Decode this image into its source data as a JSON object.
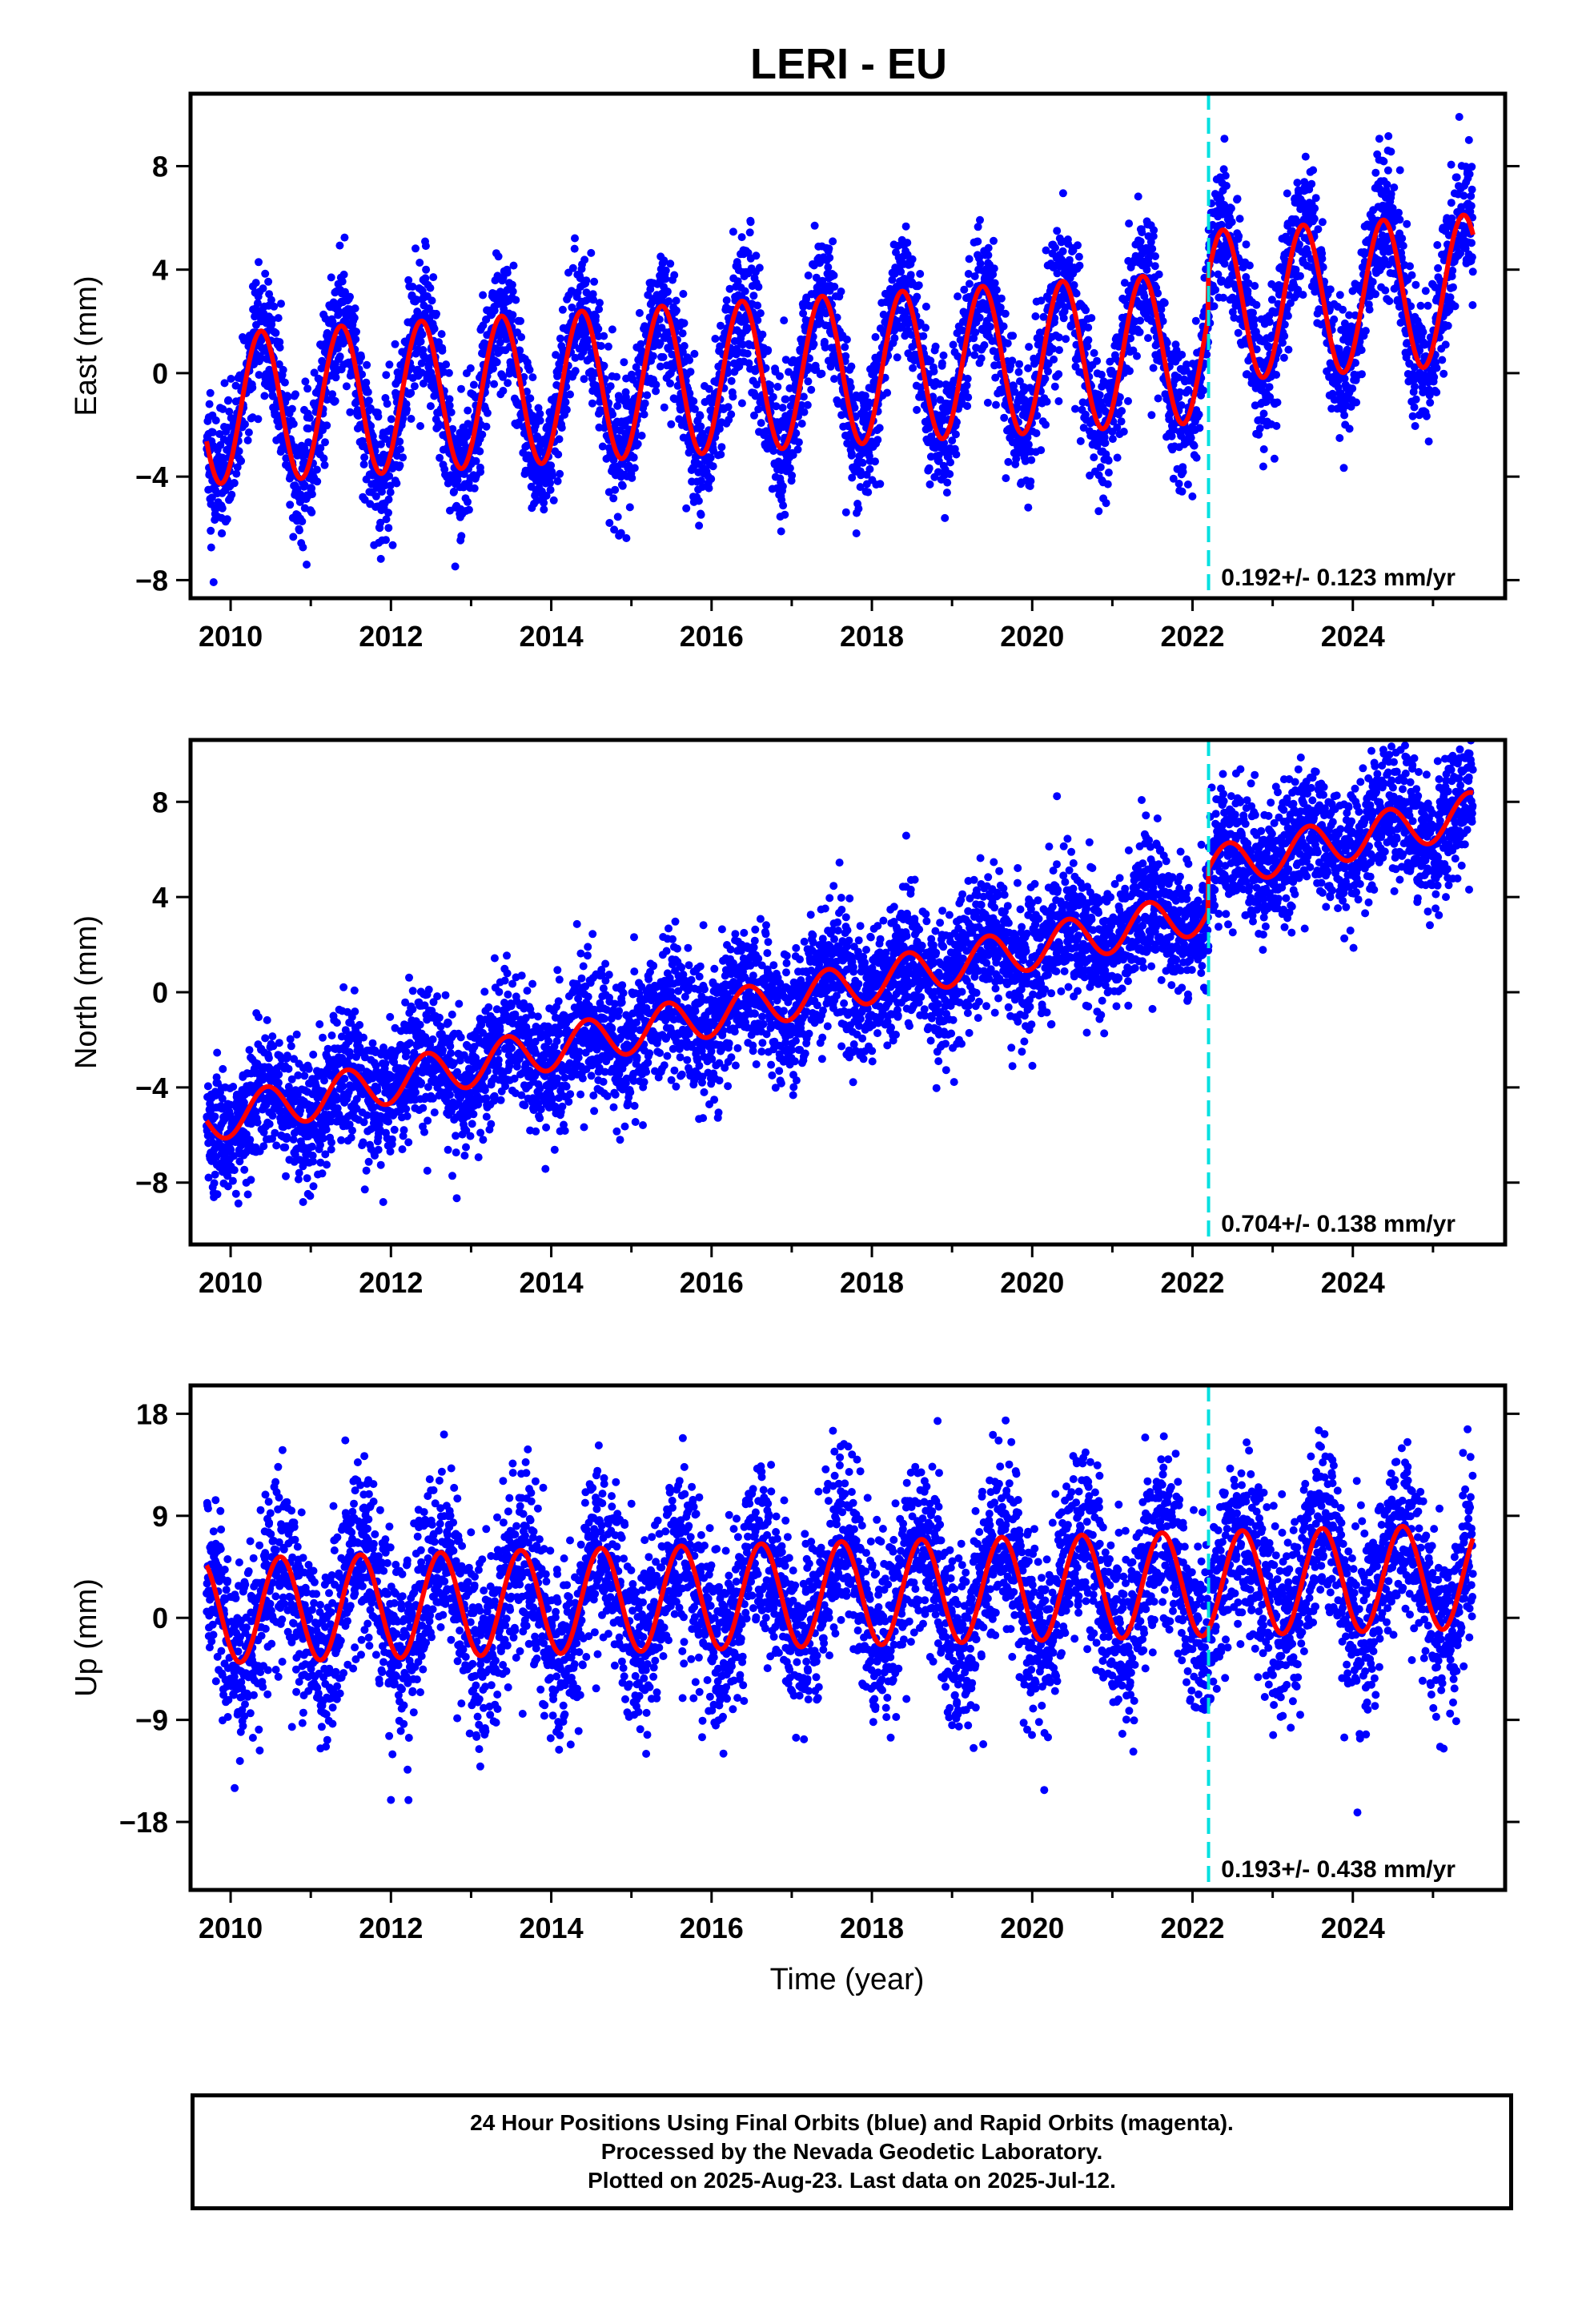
{
  "title": "LERI - EU",
  "xlabel": "Time (year)",
  "footer": {
    "line1": "24 Hour Positions Using Final Orbits (blue) and Rapid Orbits (magenta).",
    "line2": "Processed by the Nevada Geodetic Laboratory.",
    "line3": "Plotted on 2025-Aug-23. Last data on 2025-Jul-12."
  },
  "colors": {
    "points": "#0000ff",
    "model": "#ff0000",
    "event_line": "#00e0e0",
    "frame": "#000000"
  },
  "chart_data": [
    {
      "type": "scatter",
      "component": "east",
      "ylabel": "East (mm)",
      "xlim": [
        2009.5,
        2025.9
      ],
      "ylim": [
        -8.7,
        10.8
      ],
      "xticks": [
        2010,
        2012,
        2014,
        2016,
        2018,
        2020,
        2022,
        2024
      ],
      "yticks": [
        -8,
        -4,
        0,
        4,
        8
      ],
      "ytick_labels": [
        "−8",
        "−4",
        "0",
        "4",
        "8"
      ],
      "event_line_x": 2022.2,
      "rate_label": "0.192+/- 0.123 mm/yr",
      "model": {
        "t0": 2009.7,
        "t1": 2025.5,
        "offset": -1.4,
        "trend": 0.192,
        "amp": 2.9,
        "phase_peak": 0.38,
        "step_at": 2022.2,
        "step": 1.6,
        "noise_sd": 1.3
      }
    },
    {
      "type": "scatter",
      "component": "north",
      "ylabel": "North (mm)",
      "xlim": [
        2009.5,
        2025.9
      ],
      "ylim": [
        -10.6,
        10.6
      ],
      "xticks": [
        2010,
        2012,
        2014,
        2016,
        2018,
        2020,
        2022,
        2024
      ],
      "yticks": [
        -8,
        -4,
        0,
        4,
        8
      ],
      "ytick_labels": [
        "−8",
        "−4",
        "0",
        "4",
        "8"
      ],
      "event_line_x": 2022.2,
      "rate_label": "0.704+/- 0.138 mm/yr",
      "model": {
        "t0": 2009.7,
        "t1": 2025.5,
        "offset": -5.4,
        "trend": 0.704,
        "amp": 0.9,
        "phase_peak": 0.45,
        "step_at": 2022.2,
        "step": 1.8,
        "noise_sd": 1.4
      }
    },
    {
      "type": "scatter",
      "component": "up",
      "ylabel": "Up (mm)",
      "xlim": [
        2009.5,
        2025.9
      ],
      "ylim": [
        -24,
        20.5
      ],
      "xticks": [
        2010,
        2012,
        2014,
        2016,
        2018,
        2020,
        2022,
        2024
      ],
      "yticks": [
        -18,
        -9,
        0,
        9,
        18
      ],
      "ytick_labels": [
        "−18",
        "−9",
        "0",
        "9",
        "18"
      ],
      "event_line_x": 2022.2,
      "rate_label": "0.193+/- 0.438 mm/yr",
      "model": {
        "t0": 2009.7,
        "t1": 2025.5,
        "offset": 0.6,
        "trend": 0.193,
        "amp": 4.6,
        "phase_peak": 0.62,
        "step_at": 2022.2,
        "step": 0.0,
        "noise_sd": 4.0
      }
    }
  ]
}
